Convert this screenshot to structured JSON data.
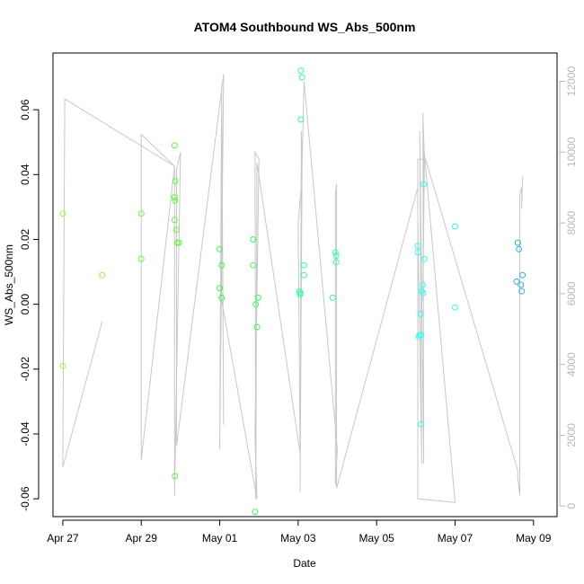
{
  "chart_data": {
    "type": "scatter",
    "title": "ATOM4 Southbound WS_Abs_500nm",
    "xlabel": "Date",
    "ylabel": "WS_Abs_500nm",
    "x_unit": "days since Apr 27",
    "xlim": [
      -0.25,
      12.6
    ],
    "ylim": [
      -0.0655,
      0.0775
    ],
    "x_ticks": [
      {
        "value": 0,
        "label": "Apr 27"
      },
      {
        "value": 2,
        "label": "Apr 29"
      },
      {
        "value": 4,
        "label": "May 01"
      },
      {
        "value": 6,
        "label": "May 03"
      },
      {
        "value": 8,
        "label": "May 05"
      },
      {
        "value": 10,
        "label": "May 07"
      },
      {
        "value": 12,
        "label": "May 09"
      }
    ],
    "y_ticks": [
      -0.06,
      -0.04,
      -0.02,
      0.0,
      0.02,
      0.04,
      0.06
    ],
    "y_tick_labels": [
      "-0.06",
      "-0.04",
      "-0.02",
      "0.00",
      "0.02",
      "0.04",
      "0.06"
    ],
    "y2lim": [
      -300,
      12800
    ],
    "y2_ticks": [
      0,
      2000,
      4000,
      6000,
      8000,
      10000,
      12000
    ],
    "y2_tick_labels": [
      "0",
      "2000",
      "4000",
      "6000",
      "8000",
      "10000",
      "12000"
    ],
    "grid": false,
    "colors": {
      "line": "#c8c8c8",
      "axis": "#000000",
      "right_axis": "#b8b8b8"
    },
    "points": [
      {
        "x": 0.0,
        "y": 0.028,
        "color": "#99ff33"
      },
      {
        "x": 0.0,
        "y": -0.019,
        "color": "#99ff33"
      },
      {
        "x": 1.0,
        "y": 0.009,
        "color": "#88ff33"
      },
      {
        "x": 2.0,
        "y": 0.028,
        "color": "#66ff33"
      },
      {
        "x": 2.0,
        "y": 0.014,
        "color": "#66ff33"
      },
      {
        "x": 2.85,
        "y": 0.049,
        "color": "#55ff33"
      },
      {
        "x": 2.87,
        "y": 0.038,
        "color": "#55ff33"
      },
      {
        "x": 2.85,
        "y": 0.033,
        "color": "#55ff33"
      },
      {
        "x": 2.86,
        "y": 0.032,
        "color": "#55ff33"
      },
      {
        "x": 2.85,
        "y": 0.026,
        "color": "#55ff33"
      },
      {
        "x": 2.9,
        "y": 0.023,
        "color": "#55ff33"
      },
      {
        "x": 2.92,
        "y": 0.019,
        "color": "#55ff33"
      },
      {
        "x": 2.96,
        "y": 0.019,
        "color": "#55ff33"
      },
      {
        "x": 2.86,
        "y": -0.053,
        "color": "#55ff33"
      },
      {
        "x": 4.0,
        "y": 0.017,
        "color": "#33ff44"
      },
      {
        "x": 4.05,
        "y": 0.012,
        "color": "#33ff44"
      },
      {
        "x": 4.0,
        "y": 0.005,
        "color": "#33ff44"
      },
      {
        "x": 4.05,
        "y": 0.002,
        "color": "#33ff44"
      },
      {
        "x": 4.85,
        "y": 0.02,
        "color": "#33ff55"
      },
      {
        "x": 4.85,
        "y": 0.012,
        "color": "#33ff55"
      },
      {
        "x": 4.92,
        "y": 0.0,
        "color": "#33ff55"
      },
      {
        "x": 4.98,
        "y": 0.002,
        "color": "#33ff55"
      },
      {
        "x": 4.95,
        "y": -0.007,
        "color": "#33ff55"
      },
      {
        "x": 4.9,
        "y": -0.064,
        "color": "#33ff55"
      },
      {
        "x": 6.07,
        "y": 0.072,
        "color": "#33ff99"
      },
      {
        "x": 6.1,
        "y": 0.07,
        "color": "#33ff99"
      },
      {
        "x": 6.07,
        "y": 0.057,
        "color": "#33ff99"
      },
      {
        "x": 6.15,
        "y": 0.012,
        "color": "#33ff99"
      },
      {
        "x": 6.15,
        "y": 0.009,
        "color": "#33ff99"
      },
      {
        "x": 6.03,
        "y": 0.004,
        "color": "#33ff99"
      },
      {
        "x": 6.05,
        "y": 0.003,
        "color": "#33ff99"
      },
      {
        "x": 6.06,
        "y": 0.0035,
        "color": "#33ff99"
      },
      {
        "x": 6.95,
        "y": 0.016,
        "color": "#33ffaa"
      },
      {
        "x": 6.97,
        "y": 0.015,
        "color": "#33ffaa"
      },
      {
        "x": 6.97,
        "y": 0.013,
        "color": "#33ffaa"
      },
      {
        "x": 6.88,
        "y": 0.002,
        "color": "#33ffaa"
      },
      {
        "x": 10.0,
        "y": 0.024,
        "color": "#33ffdd"
      },
      {
        "x": 10.0,
        "y": -0.001,
        "color": "#33ffdd"
      },
      {
        "x": 11.6,
        "y": 0.019,
        "color": "#33aaee"
      },
      {
        "x": 11.63,
        "y": 0.017,
        "color": "#33aaee"
      },
      {
        "x": 11.72,
        "y": 0.009,
        "color": "#33aaee"
      },
      {
        "x": 11.57,
        "y": 0.007,
        "color": "#33aaee"
      },
      {
        "x": 11.68,
        "y": 0.006,
        "color": "#33aaee"
      },
      {
        "x": 11.7,
        "y": 0.004,
        "color": "#33aaee"
      },
      {
        "x": 9.05,
        "y": 0.018,
        "color": "#33ffee"
      },
      {
        "x": 9.05,
        "y": 0.016,
        "color": "#33ffee"
      },
      {
        "x": 9.2,
        "y": 0.037,
        "color": "#33ffee"
      },
      {
        "x": 9.22,
        "y": 0.014,
        "color": "#33ffee"
      },
      {
        "x": 9.18,
        "y": 0.006,
        "color": "#33ffee"
      },
      {
        "x": 9.15,
        "y": 0.004,
        "color": "#33ffee"
      },
      {
        "x": 9.18,
        "y": 0.0035,
        "color": "#33ffee"
      },
      {
        "x": 9.12,
        "y": -0.003,
        "color": "#33ffee"
      },
      {
        "x": 9.08,
        "y": -0.01,
        "color": "#33ffee"
      },
      {
        "x": 9.1,
        "y": -0.0095,
        "color": "#33ffee"
      },
      {
        "x": 9.13,
        "y": -0.0095,
        "color": "#33ffee"
      },
      {
        "x": 9.13,
        "y": -0.037,
        "color": "#33ffee"
      }
    ],
    "track_series": {
      "axis": "right",
      "x": [
        1.0,
        0.0,
        0.05,
        2.85,
        2.0,
        2.0,
        2.85,
        2.85,
        3.0,
        2.9,
        2.9,
        4.1,
        4.0,
        4.05,
        4.1,
        4.05,
        4.05,
        4.95,
        4.9,
        5.0,
        4.9,
        4.92,
        4.95,
        6.05,
        6.0,
        6.1,
        6.08,
        6.05,
        6.1,
        6.15,
        7.0,
        6.95,
        6.95,
        6.98,
        6.98,
        6.98,
        9.05,
        9.05,
        9.15,
        9.1,
        9.2,
        9.18,
        9.22,
        9.18,
        9.2,
        10.0,
        9.05,
        9.05,
        9.25,
        11.6,
        11.6,
        11.65,
        11.65,
        11.7,
        11.7,
        11.72
      ],
      "y": [
        5200,
        1100,
        11500,
        9600,
        1300,
        10500,
        9600,
        300,
        10000,
        9500,
        1700,
        12200,
        1600,
        11800,
        2300,
        11900,
        5800,
        200,
        2000,
        9800,
        10000,
        200,
        9700,
        1500,
        8000,
        9300,
        10600,
        400,
        9600,
        12000,
        1600,
        600,
        8800,
        9100,
        8800,
        500,
        9000,
        8000,
        1200,
        10600,
        1200,
        11100,
        9800,
        5800,
        10200,
        100,
        200,
        9800,
        9800,
        1000,
        800,
        300,
        8800,
        9000,
        8400,
        9300
      ]
    }
  }
}
